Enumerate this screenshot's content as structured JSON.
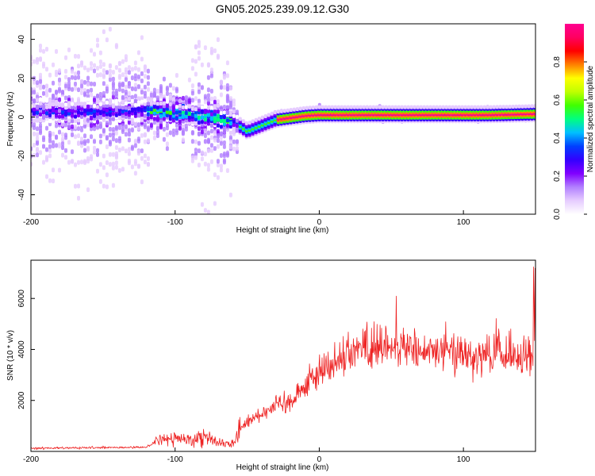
{
  "chart_data": [
    {
      "type": "heatmap",
      "title": "GN05.2025.239.09.12.G30",
      "xlabel": "Height of straight line (km)",
      "ylabel": "Frequency (Hz)",
      "xlim": [
        -200,
        150
      ],
      "ylim": [
        -50,
        48
      ],
      "xticks": [
        "-200",
        "-100",
        "0",
        "100"
      ],
      "yticks": [
        "-40",
        "-20",
        "0",
        "20",
        "40"
      ],
      "colorbar": {
        "label": "Normalized spectral amplitude",
        "range": [
          0,
          1
        ],
        "ticks": [
          "0.0",
          "0.2",
          "0.4",
          "0.6",
          "0.8"
        ],
        "colors": [
          "#ffffff",
          "#e6ccff",
          "#b280ff",
          "#8000ff",
          "#3300ff",
          "#0040ff",
          "#00c0ff",
          "#00ff80",
          "#40ff00",
          "#c0ff00",
          "#ffff00",
          "#ff8000",
          "#ff0000",
          "#ff0060",
          "#ff0090"
        ]
      },
      "center_frequency_trace": {
        "height_km": [
          -200,
          -150,
          -120,
          -100,
          -80,
          -60,
          -50,
          -40,
          -30,
          -20,
          -10,
          0,
          20,
          50,
          80,
          100,
          120,
          150
        ],
        "frequency_hz": [
          3,
          3,
          4,
          2,
          1,
          -2,
          -7,
          -4,
          -1,
          0,
          1,
          1.5,
          1.5,
          1.5,
          1.5,
          1.5,
          1.5,
          2
        ]
      }
    },
    {
      "type": "line",
      "xlabel": "Height of straight line (km)",
      "ylabel": "SNR (10 * v/v)",
      "xlim": [
        -200,
        150
      ],
      "ylim": [
        0,
        7500
      ],
      "xticks": [
        "-200",
        "-100",
        "0",
        "100"
      ],
      "yticks": [
        "2000",
        "4000",
        "6000"
      ],
      "series": [
        {
          "name": "SNR",
          "color": "#ee2222",
          "envelope": {
            "height_km": [
              -200,
              -120,
              -112,
              -100,
              -90,
              -80,
              -70,
              -60,
              -55,
              -50,
              -40,
              -30,
              -20,
              -10,
              0,
              10,
              20,
              30,
              40,
              50,
              60,
              80,
              100,
              120,
              140,
              150
            ],
            "mean_snr": [
              120,
              160,
              450,
              500,
              450,
              650,
              350,
              280,
              900,
              1200,
              1500,
              1800,
              2000,
              2600,
              3100,
              3500,
              3900,
              4100,
              4200,
              4200,
              4000,
              3900,
              3900,
              3700,
              3700,
              3600
            ]
          }
        }
      ]
    }
  ]
}
